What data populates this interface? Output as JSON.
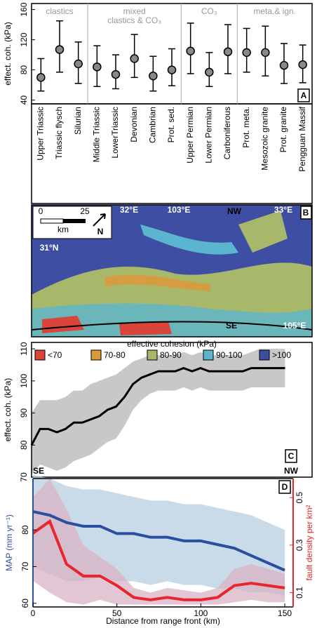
{
  "chart_data": [
    {
      "type": "errorbar",
      "panel": "A",
      "ylabel": "effect. coh. (kPa)",
      "groups": [
        [
          "clastics"
        ],
        [
          "mixed",
          "clastics & CO₃"
        ],
        [
          "CO₃"
        ],
        [
          "meta.& ign."
        ]
      ],
      "categories": [
        "Upper Triassic",
        "Triassic flysch",
        "Silurian",
        "Middle Triassic",
        "LowerTriassic",
        "Devonian",
        "Cambrian",
        "Prot. sed.",
        "Upper Permian",
        "Lower Permian",
        "Carboniferous",
        "Prot. meta.",
        "Mesozoic granite",
        "Prot. granite",
        "Pengguan Massif"
      ],
      "values": [
        70,
        107,
        88,
        84,
        74,
        95,
        72,
        80,
        105,
        77,
        104,
        103,
        103,
        86,
        87
      ],
      "lower": [
        52,
        77,
        62,
        58,
        55,
        70,
        52,
        59,
        75,
        58,
        75,
        77,
        72,
        62,
        63
      ],
      "upper": [
        95,
        145,
        117,
        112,
        100,
        127,
        98,
        108,
        142,
        103,
        140,
        135,
        138,
        115,
        113
      ],
      "color": "#555555",
      "ylim": [
        35,
        168
      ],
      "yticks": [
        40,
        80,
        120,
        160
      ]
    },
    {
      "type": "band-line",
      "panel": "C",
      "ylabel": "effect. coh. (kPa)",
      "left_note": "SE",
      "right_note": "NW",
      "x": [
        0,
        5,
        10,
        15,
        20,
        25,
        30,
        35,
        40,
        45,
        50,
        55,
        60,
        65,
        70,
        75,
        80,
        85,
        90,
        95,
        100,
        105,
        110,
        115,
        120,
        125,
        130,
        135,
        140,
        145,
        150
      ],
      "values": [
        80,
        85,
        85,
        84,
        85,
        87,
        87,
        88,
        89,
        91,
        92,
        95,
        99,
        101,
        102,
        103,
        103,
        103,
        104,
        103,
        104,
        103,
        103,
        103,
        103,
        103,
        104,
        104,
        104,
        104,
        104
      ],
      "band": {
        "low": [
          71,
          74,
          73,
          72,
          73,
          75,
          76,
          77,
          79,
          81,
          82,
          86,
          91,
          94,
          96,
          97,
          97,
          97,
          98,
          97,
          98,
          97,
          97,
          97,
          97,
          97,
          98,
          98,
          98,
          98,
          98
        ],
        "high": [
          90,
          94,
          94,
          94,
          95,
          97,
          97,
          99,
          100,
          101,
          102,
          104,
          106,
          107,
          108,
          108,
          108,
          108,
          109,
          108,
          109,
          108,
          108,
          108,
          108,
          108,
          109,
          110,
          110,
          110,
          110
        ]
      },
      "color": "#000000",
      "band_color": "#c8c8c8",
      "xlim": [
        0,
        166
      ],
      "ylim": [
        70,
        112
      ],
      "yticks": [
        70,
        80,
        90,
        100,
        110
      ]
    },
    {
      "type": "dual-band-line",
      "panel": "D",
      "ylabel": "MAP (mm yr⁻¹)",
      "y2label": "fault density per km²",
      "xlabel": "Distance from range front (km)",
      "x": [
        0,
        10,
        20,
        30,
        40,
        50,
        60,
        70,
        80,
        90,
        100,
        110,
        120,
        130,
        140,
        150
      ],
      "series": [
        {
          "name": "MAP",
          "color": "#2b4fa0",
          "band_color": "#b7cfe2",
          "values": [
            85,
            84,
            82,
            81,
            81,
            79,
            79,
            78,
            78,
            77,
            77,
            76,
            75,
            73,
            71,
            69
          ],
          "band": {
            "low": [
              70,
              68,
              66,
              66,
              67,
              66,
              66,
              65,
              66,
              65,
              65,
              64,
              64,
              63,
              63,
              62
            ],
            "high": [
              95,
              94,
              92,
              91,
              91,
              90,
              89,
              88,
              88,
              87,
              87,
              86,
              85,
              84,
              82,
              80
            ]
          }
        },
        {
          "name": "fault density",
          "axis": "y2",
          "color": "#e8262e",
          "band_color": "#d9b3c4",
          "values": [
            0.35,
            0.4,
            0.22,
            0.17,
            0.17,
            0.13,
            0.08,
            0.07,
            0.08,
            0.07,
            0.07,
            0.08,
            0.13,
            0.14,
            0.13,
            0.12
          ],
          "band": {
            "low": [
              0.15,
              0.1,
              0.06,
              0.05,
              0.07,
              0.05,
              0.05,
              0.05,
              0.05,
              0.05,
              0.05,
              0.05,
              0.06,
              0.07,
              0.06,
              0.06
            ],
            "high": [
              0.5,
              0.58,
              0.45,
              0.3,
              0.25,
              0.2,
              0.12,
              0.1,
              0.12,
              0.11,
              0.1,
              0.12,
              0.2,
              0.22,
              0.2,
              0.18
            ]
          }
        }
      ],
      "xlim": [
        0,
        155
      ],
      "xticks": [
        0,
        50,
        100,
        150
      ],
      "ylim": [
        59,
        94
      ],
      "yticks": [
        60,
        70,
        80
      ],
      "y2lim": [
        0.04,
        0.58
      ],
      "y2ticks": [
        0.1,
        0.3,
        0.5
      ]
    }
  ],
  "map": {
    "panel": "B",
    "scale_start": "0",
    "scale_end": "25",
    "scale_unit": "km",
    "north": "N",
    "labels": [
      "32°E",
      "103°E",
      "NW",
      "33°E",
      "31°N",
      "SE",
      "105°E"
    ],
    "legend_title": "effective cohesion (kPa)",
    "legend": [
      {
        "label": "<70",
        "color": "#d9453a"
      },
      {
        "label": "70-80",
        "color": "#d99a3b"
      },
      {
        "label": "80-90",
        "color": "#a8b86a"
      },
      {
        "label": "90-100",
        "color": "#5bb5d0"
      },
      {
        "label": ">100",
        "color": "#3a4fa0"
      }
    ]
  }
}
